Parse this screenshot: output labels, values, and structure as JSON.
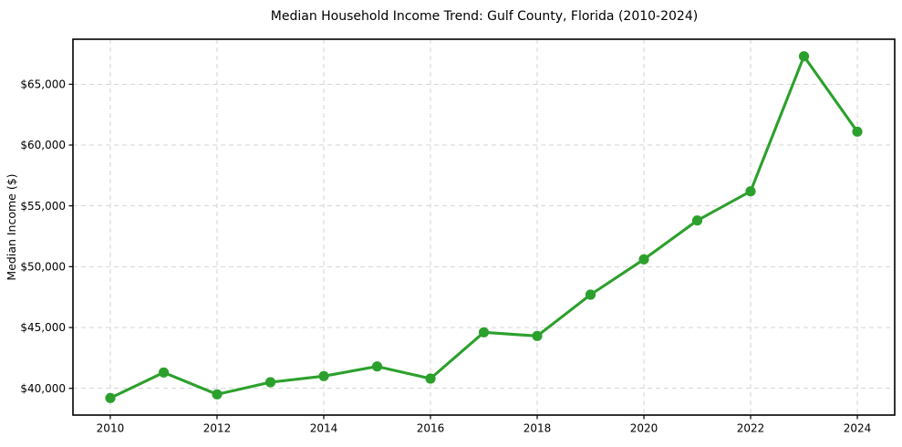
{
  "chart_data": {
    "type": "line",
    "title": "Median Household Income Trend: Gulf County, Florida (2010-2024)",
    "xlabel": "",
    "ylabel": "Median Income ($)",
    "series_name": "Median Household Income",
    "x": [
      2010,
      2011,
      2012,
      2013,
      2014,
      2015,
      2016,
      2017,
      2018,
      2019,
      2020,
      2021,
      2022,
      2023,
      2024
    ],
    "values": [
      39200,
      41300,
      39500,
      40500,
      41000,
      41800,
      40800,
      44600,
      44300,
      47700,
      50600,
      53800,
      56200,
      67300,
      61100
    ],
    "xticks": [
      2010,
      2012,
      2014,
      2016,
      2018,
      2020,
      2022,
      2024
    ],
    "xtick_labels": [
      "2010",
      "2012",
      "2014",
      "2016",
      "2018",
      "2020",
      "2022",
      "2024"
    ],
    "yticks": [
      40000,
      45000,
      50000,
      55000,
      60000,
      65000
    ],
    "ytick_labels": [
      "$40,000",
      "$45,000",
      "$50,000",
      "$55,000",
      "$60,000",
      "$65,000"
    ],
    "xlim": [
      2009.3,
      2024.7
    ],
    "ylim": [
      37800,
      68700
    ],
    "grid": true,
    "grid_style": "dashed",
    "legend_position": "none",
    "line_color": "#2ca02c",
    "marker": "circle",
    "grid_color": "#d4d4d4",
    "spine_color": "#000000",
    "background_color": "#ffffff"
  }
}
